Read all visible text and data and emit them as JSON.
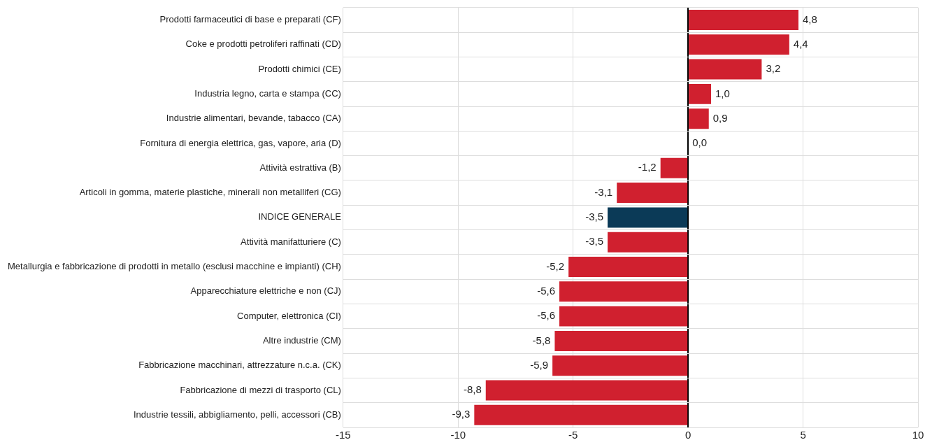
{
  "chart_data": {
    "type": "bar",
    "orientation": "horizontal",
    "categories": [
      "Prodotti farmaceutici di base e preparati (CF)",
      "Coke e prodotti petroliferi raffinati (CD)",
      "Prodotti chimici (CE)",
      "Industria legno, carta e stampa (CC)",
      "Industrie alimentari, bevande, tabacco (CA)",
      "Fornitura di energia elettrica, gas, vapore, aria (D)",
      "Attività estrattiva (B)",
      "Articoli in gomma, materie plastiche, minerali non metalliferi (CG)",
      "INDICE GENERALE",
      "Attività manifatturiere (C)",
      "Metallurgia e fabbricazione di prodotti in metallo (esclusi macchine e impianti) (CH)",
      "Apparecchiature elettriche e non (CJ)",
      "Computer, elettronica (CI)",
      "Altre industrie (CM)",
      "Fabbricazione macchinari, attrezzature n.c.a. (CK)",
      "Fabbricazione di mezzi di trasporto (CL)",
      "Industrie tessili, abbigliamento, pelli, accessori (CB)"
    ],
    "values": [
      4.8,
      4.4,
      3.2,
      1.0,
      0.9,
      0.0,
      -1.2,
      -3.1,
      -3.5,
      -3.5,
      -5.2,
      -5.6,
      -5.6,
      -5.8,
      -5.9,
      -8.8,
      -9.3
    ],
    "value_labels": [
      "4,8",
      "4,4",
      "3,2",
      "1,0",
      "0,9",
      "0,0",
      "-1,2",
      "-3,1",
      "-3,5",
      "-3,5",
      "-5,2",
      "-5,6",
      "-5,6",
      "-5,8",
      "-5,9",
      "-8,8",
      "-9,3"
    ],
    "colors": [
      "#d0202f",
      "#d0202f",
      "#d0202f",
      "#d0202f",
      "#d0202f",
      "#d0202f",
      "#d0202f",
      "#d0202f",
      "#0b3a57",
      "#d0202f",
      "#d0202f",
      "#d0202f",
      "#d0202f",
      "#d0202f",
      "#d0202f",
      "#d0202f",
      "#d0202f"
    ],
    "xlim": [
      -15,
      10
    ],
    "xticks": [
      -15,
      -10,
      -5,
      0,
      5,
      10
    ],
    "grid": true,
    "legend": false
  }
}
